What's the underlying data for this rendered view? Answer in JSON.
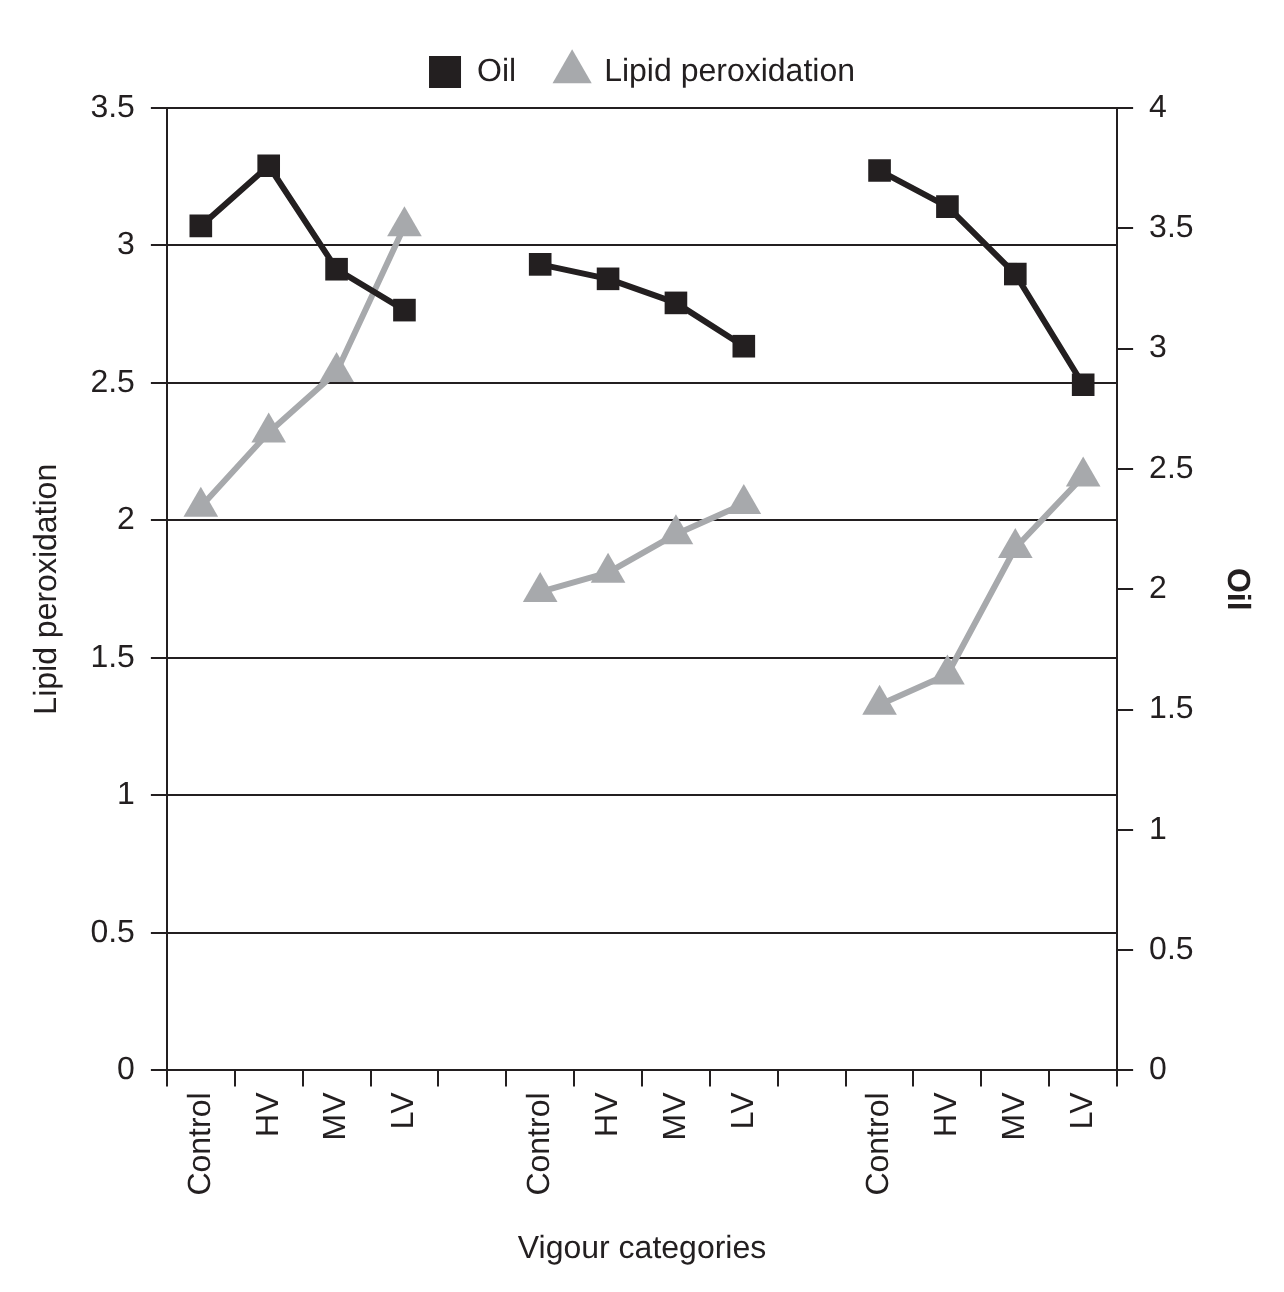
{
  "chart_data": {
    "type": "line",
    "xlabel": "Vigour categories",
    "ylabel": "Lipid peroxidation",
    "y2label": "Oil",
    "categories": [
      "Control",
      "HV",
      "MV",
      "LV",
      null,
      "Control",
      "HV",
      "MV",
      "LV",
      null,
      "Control",
      "HV",
      "MV",
      "LV"
    ],
    "series": [
      {
        "name": "Oil",
        "color": "#231f20",
        "axis": "y2",
        "marker": "square",
        "values": [
          3.51,
          3.76,
          3.33,
          3.16,
          null,
          3.35,
          3.29,
          3.19,
          3.01,
          null,
          3.74,
          3.59,
          3.31,
          2.85
        ]
      },
      {
        "name": "Lipid peroxidation",
        "color": "#a7a9ac",
        "axis": "y",
        "marker": "triangle",
        "values": [
          2.05,
          2.32,
          2.54,
          3.07,
          null,
          1.74,
          1.81,
          1.95,
          2.06,
          null,
          1.33,
          1.44,
          1.9,
          2.16
        ]
      }
    ],
    "ylim": [
      0,
      3.5
    ],
    "yticks": [
      0,
      0.5,
      1,
      1.5,
      2,
      2.5,
      3,
      3.5
    ],
    "y2lim": [
      0,
      4
    ],
    "y2ticks": [
      0,
      0.5,
      1,
      1.5,
      2,
      2.5,
      3,
      3.5,
      4
    ],
    "grid": "y",
    "legend": "top",
    "line_style": "solid"
  }
}
